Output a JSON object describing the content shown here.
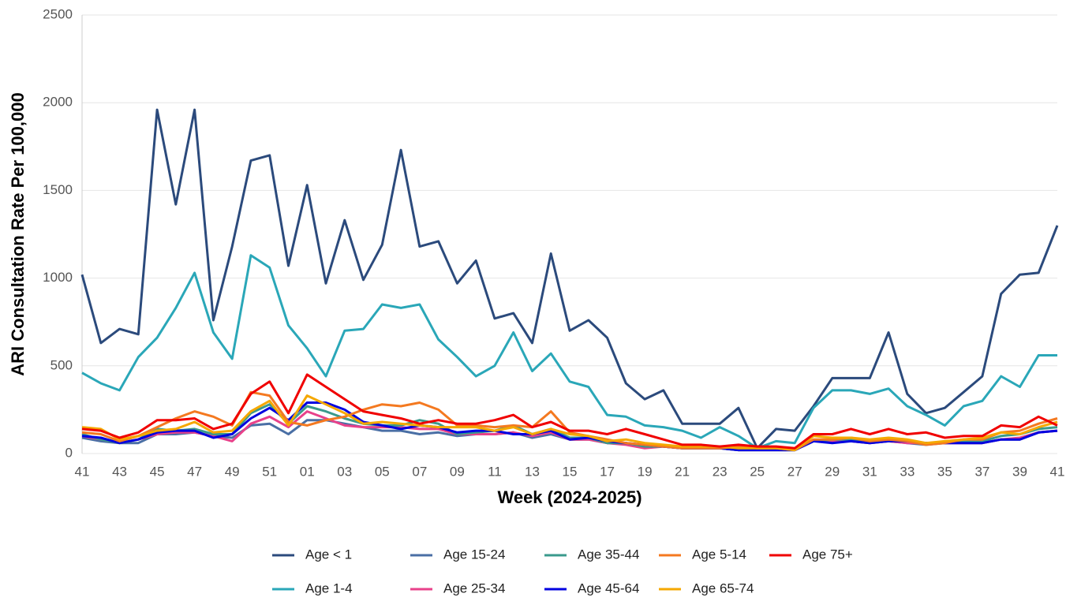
{
  "chart_data": {
    "type": "line",
    "y_label": "ARI Consultation Rate Per 100,000",
    "x_label": "Week (2024-2025)",
    "categories": [
      "41",
      null,
      "43",
      null,
      "45",
      null,
      "47",
      null,
      "49",
      null,
      "51",
      null,
      "01",
      null,
      "03",
      null,
      "05",
      null,
      "07",
      null,
      "09",
      null,
      "11",
      null,
      "13",
      null,
      "15",
      null,
      "17",
      null,
      "19",
      null,
      "21",
      null,
      "23",
      null,
      "25",
      null,
      "27",
      null,
      "29",
      null,
      "31",
      null,
      "33",
      null,
      "35",
      null,
      "37",
      null,
      "39",
      null,
      "41"
    ],
    "ylim": [
      0,
      2500
    ],
    "yticks": [
      0,
      500,
      1000,
      1500,
      2000,
      2500
    ],
    "grid": true,
    "series": [
      {
        "name": "Age < 1",
        "color": "#2b4a7c",
        "values": [
          1020,
          630,
          710,
          680,
          1960,
          1420,
          1960,
          760,
          1180,
          1670,
          1700,
          1070,
          1530,
          970,
          1330,
          990,
          1190,
          1730,
          1180,
          1210,
          970,
          1100,
          770,
          800,
          630,
          1140,
          700,
          760,
          660,
          400,
          310,
          360,
          170,
          170,
          170,
          260,
          30,
          140,
          130,
          270,
          430,
          430,
          430,
          690,
          340,
          230,
          260,
          350,
          440,
          910,
          1020,
          1030,
          1300
        ]
      },
      {
        "name": "Age 1-4",
        "color": "#2aa7b8",
        "values": [
          460,
          400,
          360,
          550,
          660,
          830,
          1030,
          690,
          540,
          1130,
          1060,
          730,
          600,
          440,
          700,
          710,
          850,
          830,
          850,
          650,
          550,
          440,
          500,
          690,
          470,
          570,
          410,
          380,
          220,
          210,
          160,
          150,
          130,
          90,
          150,
          100,
          30,
          70,
          60,
          260,
          360,
          360,
          340,
          370,
          270,
          220,
          160,
          270,
          300,
          440,
          380,
          560,
          560
        ]
      },
      {
        "name": "Age 15-24",
        "color": "#4a6fa5",
        "values": [
          90,
          70,
          60,
          60,
          110,
          110,
          120,
          100,
          90,
          160,
          170,
          110,
          190,
          190,
          170,
          150,
          130,
          130,
          110,
          120,
          100,
          110,
          110,
          120,
          90,
          110,
          80,
          80,
          60,
          60,
          40,
          40,
          30,
          30,
          30,
          20,
          20,
          20,
          20,
          70,
          70,
          70,
          60,
          70,
          60,
          50,
          60,
          60,
          60,
          80,
          80,
          120,
          130
        ]
      },
      {
        "name": "Age 25-34",
        "color": "#e8418a",
        "values": [
          100,
          80,
          60,
          80,
          110,
          120,
          120,
          100,
          70,
          170,
          210,
          150,
          240,
          200,
          160,
          150,
          150,
          150,
          140,
          140,
          110,
          110,
          110,
          120,
          100,
          120,
          80,
          80,
          60,
          50,
          30,
          40,
          30,
          30,
          30,
          20,
          20,
          20,
          20,
          70,
          70,
          70,
          60,
          70,
          60,
          60,
          60,
          60,
          60,
          80,
          90,
          120,
          130
        ]
      },
      {
        "name": "Age 35-44",
        "color": "#3a9a8c",
        "values": [
          110,
          80,
          60,
          80,
          140,
          130,
          140,
          110,
          110,
          230,
          280,
          170,
          270,
          240,
          200,
          170,
          160,
          160,
          190,
          170,
          110,
          120,
          130,
          160,
          110,
          140,
          90,
          90,
          60,
          60,
          40,
          40,
          30,
          30,
          30,
          20,
          20,
          20,
          20,
          70,
          80,
          80,
          70,
          80,
          70,
          60,
          60,
          70,
          70,
          100,
          110,
          140,
          150
        ]
      },
      {
        "name": "Age 45-64",
        "color": "#0000e0",
        "values": [
          100,
          90,
          60,
          80,
          120,
          130,
          130,
          90,
          110,
          200,
          260,
          190,
          290,
          290,
          250,
          180,
          160,
          140,
          160,
          150,
          120,
          130,
          130,
          110,
          110,
          130,
          80,
          90,
          70,
          60,
          50,
          40,
          30,
          30,
          30,
          20,
          20,
          20,
          20,
          70,
          60,
          70,
          60,
          70,
          70,
          60,
          60,
          60,
          60,
          80,
          80,
          120,
          130
        ]
      },
      {
        "name": "Age 5-14",
        "color": "#f47920",
        "values": [
          120,
          110,
          70,
          100,
          150,
          200,
          240,
          210,
          160,
          350,
          330,
          180,
          160,
          190,
          210,
          250,
          280,
          270,
          290,
          250,
          160,
          160,
          150,
          160,
          150,
          240,
          120,
          100,
          80,
          60,
          50,
          40,
          30,
          30,
          30,
          40,
          30,
          30,
          20,
          80,
          80,
          90,
          70,
          80,
          70,
          50,
          60,
          80,
          80,
          120,
          130,
          170,
          200
        ]
      },
      {
        "name": "Age 65-74",
        "color": "#f5a800",
        "values": [
          150,
          140,
          80,
          100,
          130,
          140,
          180,
          120,
          130,
          240,
          300,
          160,
          330,
          280,
          230,
          170,
          180,
          170,
          160,
          150,
          150,
          150,
          130,
          150,
          110,
          140,
          110,
          100,
          70,
          80,
          60,
          50,
          40,
          40,
          40,
          30,
          30,
          30,
          20,
          100,
          90,
          90,
          80,
          90,
          80,
          60,
          70,
          80,
          90,
          120,
          110,
          150,
          180
        ]
      },
      {
        "name": "Age 75+",
        "color": "#f00000",
        "values": [
          140,
          130,
          90,
          120,
          190,
          190,
          200,
          140,
          170,
          340,
          410,
          230,
          450,
          380,
          310,
          240,
          220,
          200,
          170,
          190,
          170,
          170,
          190,
          220,
          150,
          180,
          130,
          130,
          110,
          140,
          110,
          80,
          50,
          50,
          40,
          50,
          40,
          40,
          30,
          110,
          110,
          140,
          110,
          140,
          110,
          120,
          90,
          100,
          100,
          160,
          150,
          210,
          160
        ]
      }
    ]
  }
}
